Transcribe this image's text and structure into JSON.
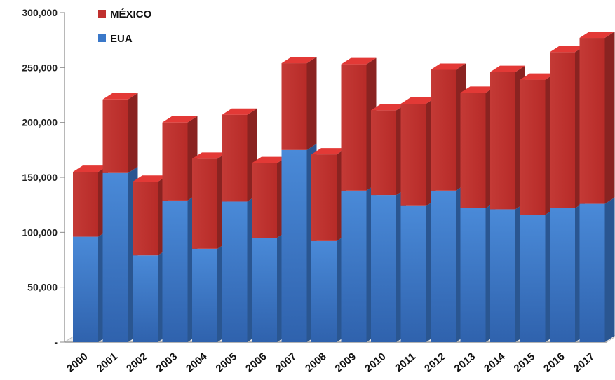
{
  "chart_data": {
    "type": "bar",
    "stacked": true,
    "style": "3d",
    "categories": [
      "2000",
      "2001",
      "2002",
      "2003",
      "2004",
      "2005",
      "2006",
      "2007",
      "2008",
      "2009",
      "2010",
      "2011",
      "2012",
      "2013",
      "2014",
      "2015",
      "2016",
      "2017"
    ],
    "series": [
      {
        "name": "EUA",
        "color": "#3a78c9",
        "values": [
          96000,
          154000,
          79000,
          129000,
          85000,
          128000,
          95000,
          175000,
          92000,
          138000,
          134000,
          124000,
          138000,
          122000,
          121000,
          116000,
          122000,
          126000
        ]
      },
      {
        "name": "MÉXICO",
        "color": "#c0302e",
        "values": [
          59000,
          67000,
          67000,
          71000,
          82000,
          79000,
          68000,
          79000,
          79000,
          115000,
          77000,
          93000,
          110000,
          105000,
          125000,
          123000,
          142000,
          151000
        ]
      }
    ],
    "ylim": [
      0,
      300000
    ],
    "yticks": [
      0,
      50000,
      100000,
      150000,
      200000,
      250000,
      300000
    ],
    "ytick_labels": [
      "-",
      "50,000",
      "100,000",
      "150,000",
      "200,000",
      "250,000",
      "300,000"
    ],
    "legend": {
      "position": "top-left",
      "order": [
        "MÉXICO",
        "EUA"
      ]
    },
    "grid": false,
    "title": "",
    "xlabel": "",
    "ylabel": ""
  }
}
